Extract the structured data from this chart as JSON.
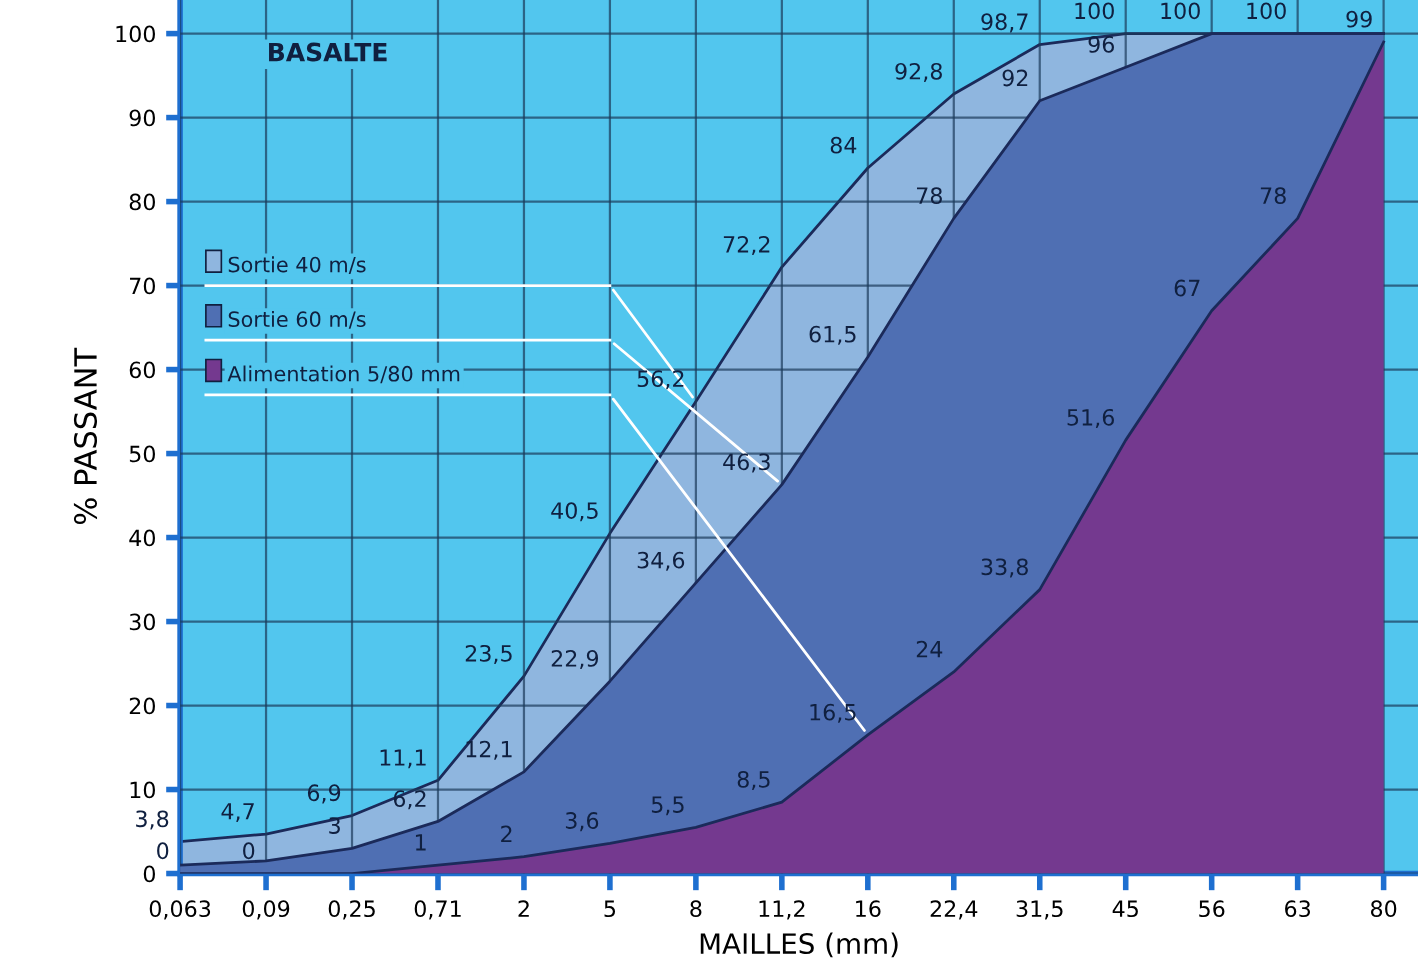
{
  "chart_data": {
    "type": "area",
    "title": "BASALTE",
    "xlabel": "MAILLES (mm)",
    "ylabel": "% PASSANT",
    "categories": [
      "0,063",
      "0,09",
      "0,25",
      "0,71",
      "2",
      "5",
      "8",
      "11,2",
      "16",
      "22,4",
      "31,5",
      "45",
      "56",
      "63",
      "80"
    ],
    "series": [
      {
        "name": "Sortie 40 m/s",
        "color": "#8fb6df",
        "values": [
          3.8,
          4.7,
          6.9,
          11.1,
          23.5,
          40.5,
          56.2,
          72.2,
          84,
          92.8,
          98.7,
          100,
          100,
          100,
          100
        ],
        "value_labels": [
          "3,8",
          "4,7",
          "6,9",
          "11,1",
          "23,5",
          "40,5",
          "56,2",
          "72,2",
          "84",
          "92,8",
          "98,7",
          "100",
          "100",
          "100",
          null
        ]
      },
      {
        "name": "Sortie 60 m/s",
        "color": "#4f6fb3",
        "values": [
          1,
          1.5,
          3,
          6.2,
          12.1,
          22.9,
          34.6,
          46.3,
          61.5,
          78,
          92,
          96,
          100,
          100,
          100
        ],
        "value_labels": [
          null,
          null,
          "3",
          "6,2",
          "12,1",
          "22,9",
          "34,6",
          "46,3",
          "61,5",
          "78",
          "92",
          "96",
          null,
          null,
          null
        ]
      },
      {
        "name": "Alimentation 5/80 mm",
        "color": "#74398f",
        "values": [
          0,
          0,
          0,
          1,
          2,
          3.6,
          5.5,
          8.5,
          16.5,
          24,
          33.8,
          51.6,
          67,
          78,
          99
        ],
        "value_labels": [
          "0",
          "0",
          null,
          "1",
          "2",
          "3,6",
          "5,5",
          "8,5",
          "16,5",
          "24",
          "33,8",
          "51,6",
          "67",
          "78",
          "99"
        ]
      }
    ],
    "ylim": [
      0,
      104
    ],
    "yticks": [
      0,
      10,
      20,
      30,
      40,
      50,
      60,
      70,
      80,
      90,
      100
    ],
    "grid": true,
    "legend": "top left"
  }
}
